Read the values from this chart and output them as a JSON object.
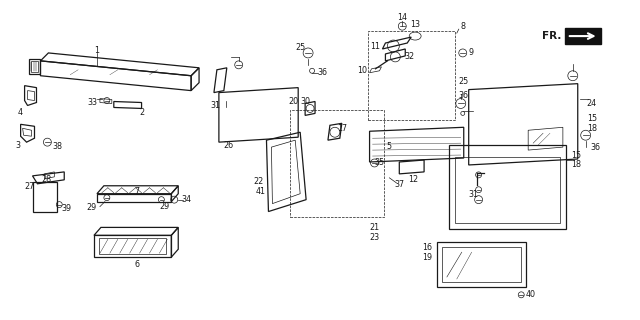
{
  "bg_color": "#ffffff",
  "line_color": "#1a1a1a",
  "fig_width": 6.4,
  "fig_height": 3.2,
  "dpi": 100,
  "label_fontsize": 5.8,
  "fr_text": "FR.",
  "hatch_color": "#555555"
}
